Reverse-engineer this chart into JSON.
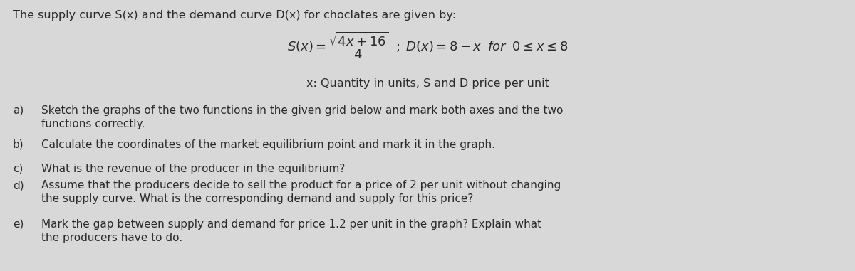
{
  "background_color": "#d8d8d8",
  "title_line": "The supply curve S(x) and the demand curve D(x) for choclates are given by:",
  "subtitle_line": "x: Quantity in units, S and D price per unit",
  "text_color": "#2a2a2a",
  "title_fontsize": 11.5,
  "formula_fontsize": 12,
  "body_fontsize": 11.0,
  "item_labels": [
    "a)",
    "b)",
    "c)",
    "d)",
    "e)"
  ],
  "item_texts": [
    "Sketch the graphs of the two functions in the given grid below and mark both axes and the two\nfunctions correctly.",
    "Calculate the coordinates of the market equilibrium point and mark it in the graph.",
    "What is the revenue of the producer in the equilibrium?",
    "Assume that the producers decide to sell the product for a price of 2 per unit without changing\nthe supply curve. What is the corresponding demand and supply for this price?",
    "Mark the gap between supply and demand for price 1.2 per unit in the graph? Explain what\nthe producers have to do."
  ]
}
